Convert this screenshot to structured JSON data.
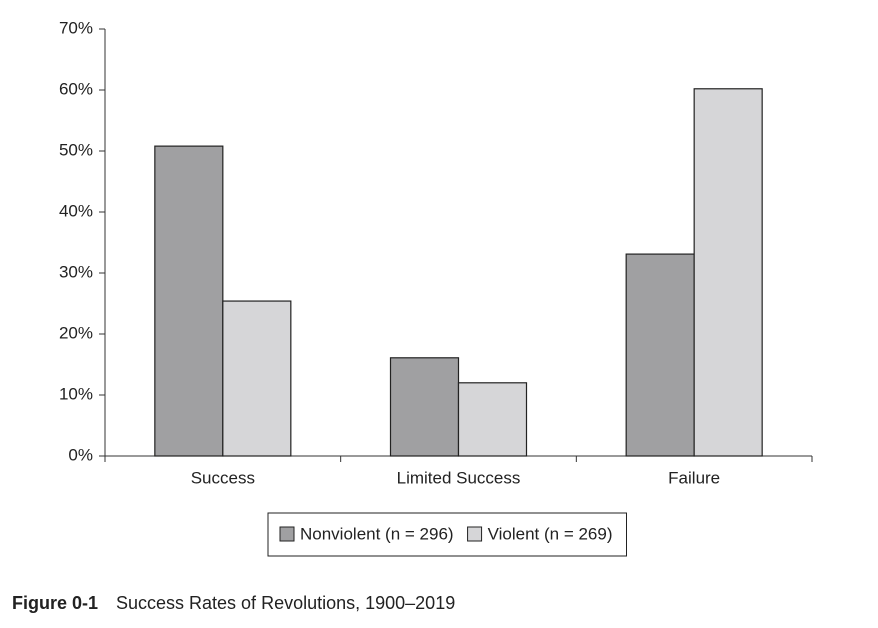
{
  "chart_data": {
    "type": "bar",
    "figure_label": "Figure 0-1",
    "title": "Success Rates of Revolutions, 1900–2019",
    "categories": [
      "Success",
      "Limited Success",
      "Failure"
    ],
    "series": [
      {
        "name": "Nonviolent (n = 296)",
        "color": "#a0a0a2",
        "values": [
          50.8,
          16.1,
          33.1
        ]
      },
      {
        "name": "Violent (n = 269)",
        "color": "#d6d6d8",
        "values": [
          25.4,
          12.0,
          60.2
        ]
      }
    ],
    "ylim": [
      0,
      70
    ],
    "yticks": [
      {
        "value": 0,
        "label": "0%"
      },
      {
        "value": 10,
        "label": "10%"
      },
      {
        "value": 20,
        "label": "20%"
      },
      {
        "value": 30,
        "label": "30%"
      },
      {
        "value": 40,
        "label": "40%"
      },
      {
        "value": 50,
        "label": "50%"
      },
      {
        "value": 60,
        "label": "60%"
      },
      {
        "value": 70,
        "label": "70%"
      }
    ],
    "grid": false,
    "legend": "bottom"
  }
}
